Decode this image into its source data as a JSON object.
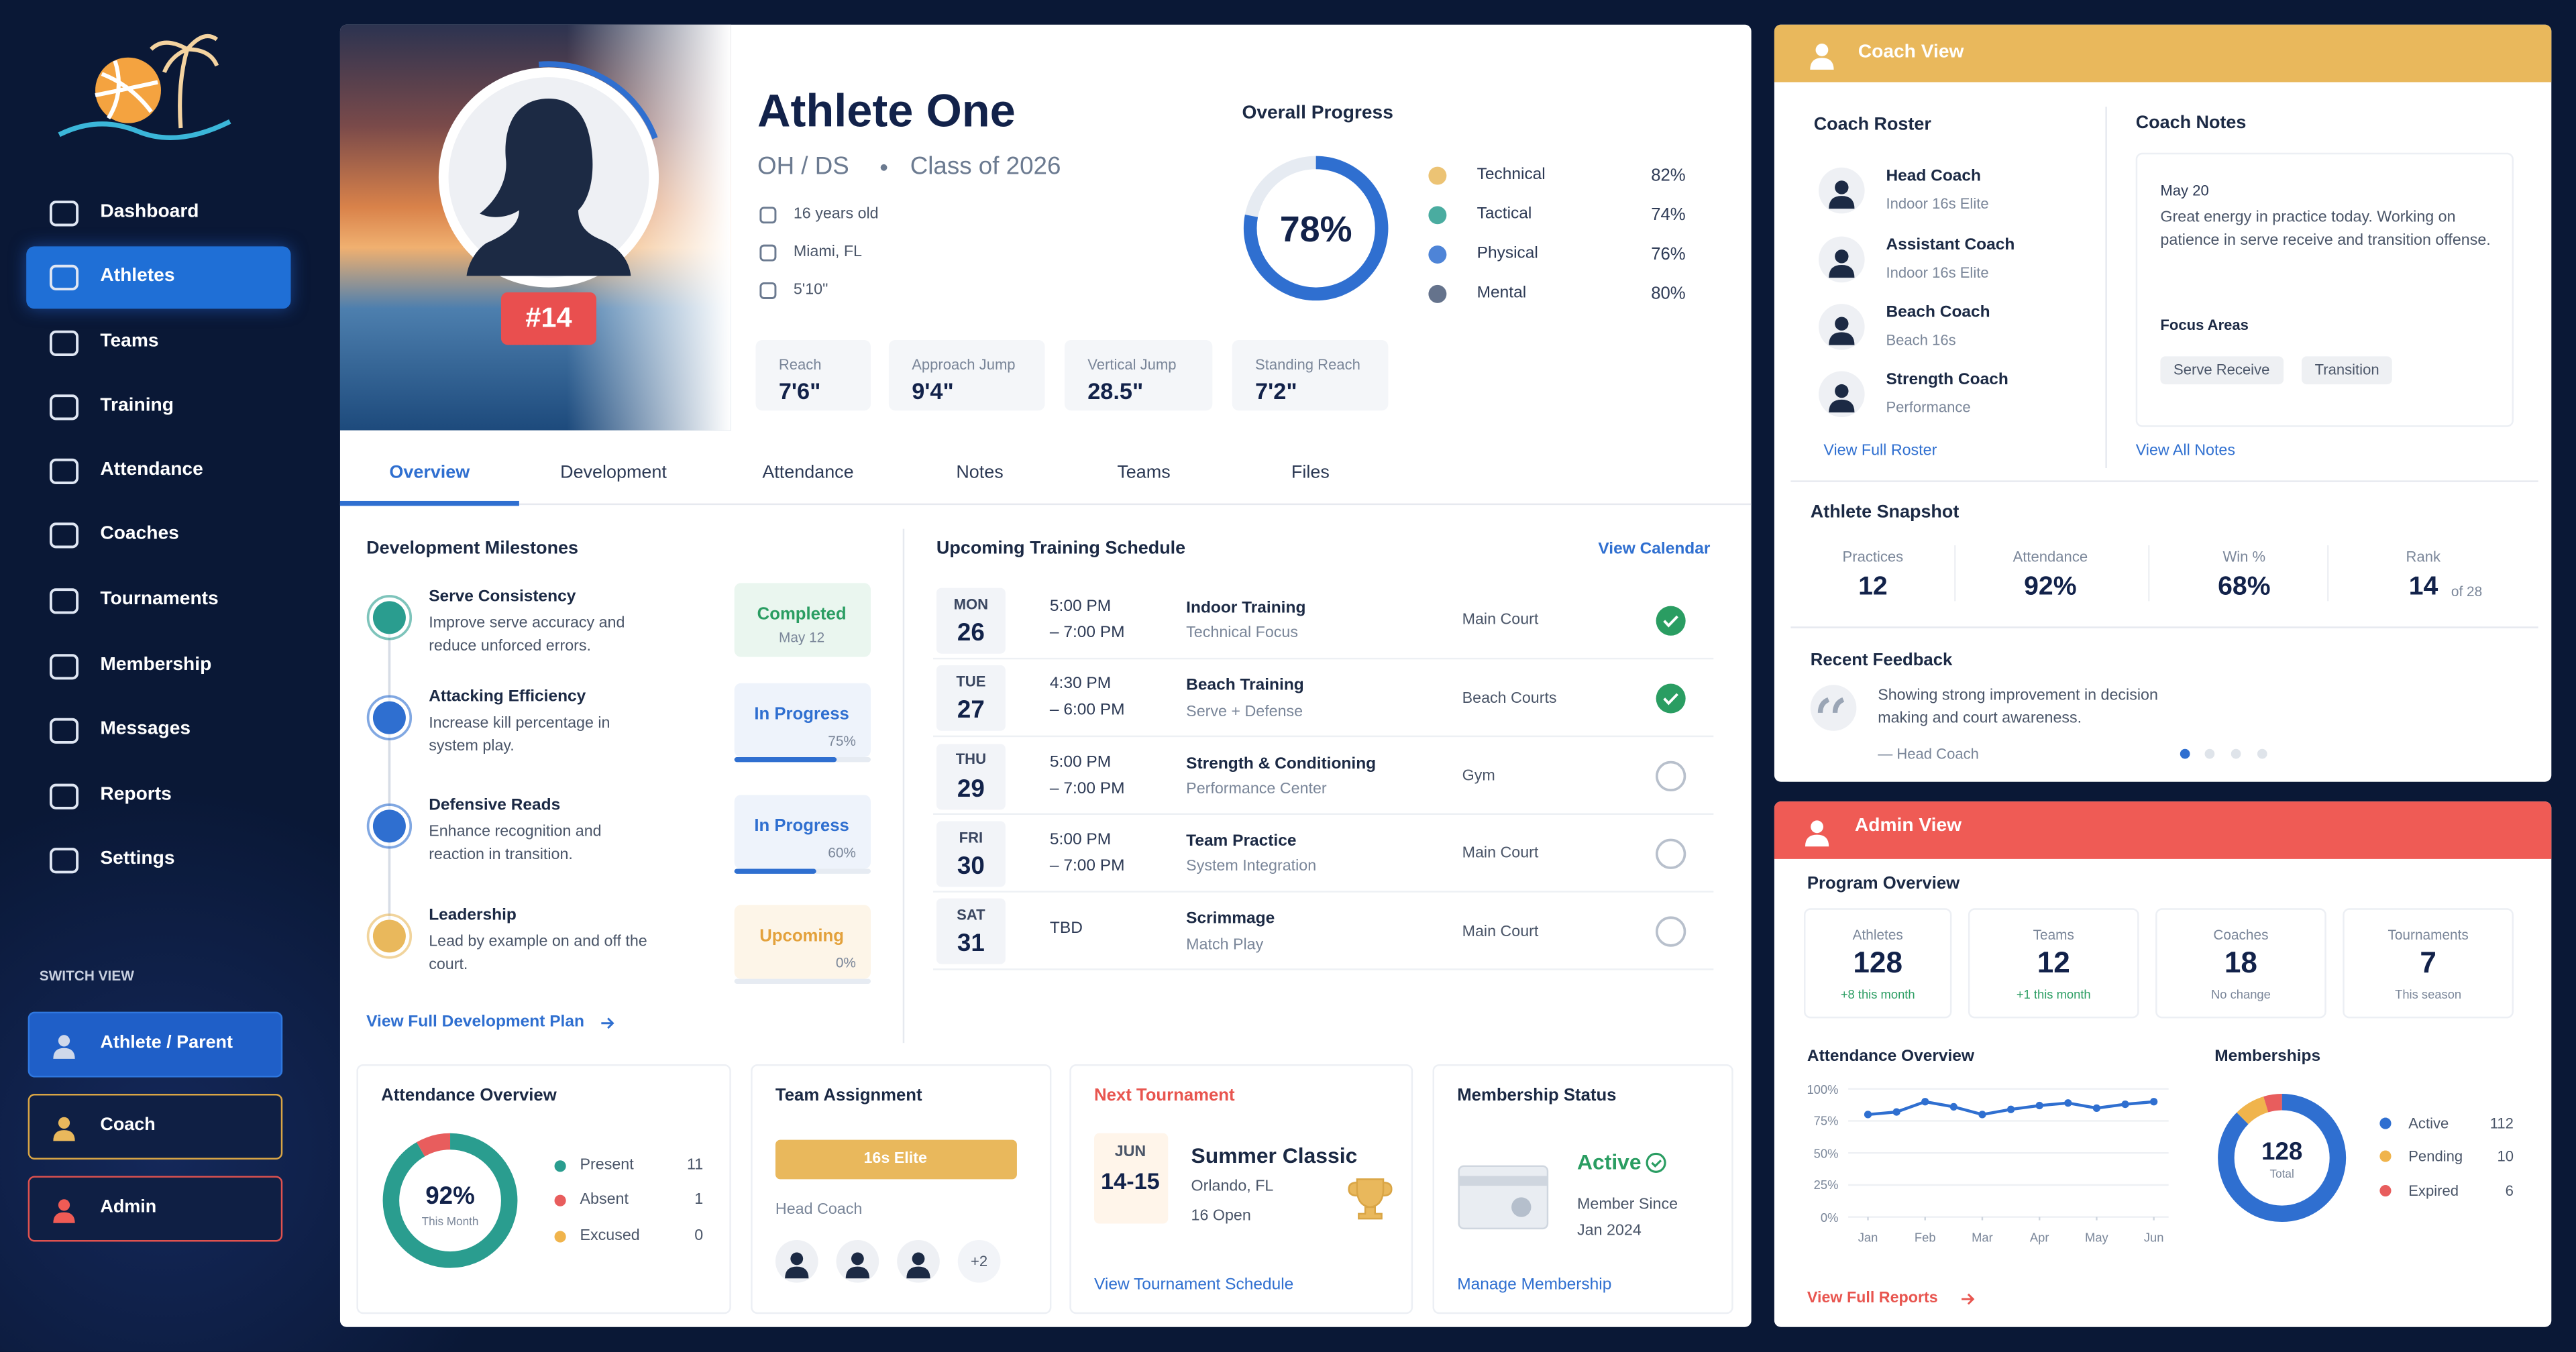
{
  "sidebar": {
    "nav": [
      "Dashboard",
      "Athletes",
      "Teams",
      "Training",
      "Attendance",
      "Coaches",
      "Tournaments",
      "Membership",
      "Messages",
      "Reports",
      "Settings"
    ],
    "switch_view": "SWITCH VIEW",
    "views": [
      "Athlete / Parent",
      "Coach",
      "Admin"
    ]
  },
  "profile": {
    "number": "#14",
    "name": "Athlete One",
    "positions": "OH / DS",
    "class": "Class of 2026",
    "details": [
      "16 years old",
      "Miami, FL",
      "5'10\""
    ],
    "stats": [
      {
        "label": "Reach",
        "value": "7'6\""
      },
      {
        "label": "Approach Jump",
        "value": "9'4\""
      },
      {
        "label": "Vertical Jump",
        "value": "28.5\""
      },
      {
        "label": "Standing Reach",
        "value": "7'2\""
      }
    ],
    "overall_progress": {
      "title": "Overall Progress",
      "value": 78,
      "label": "78%"
    },
    "skills": [
      {
        "name": "Technical",
        "value": "82%"
      },
      {
        "name": "Tactical",
        "value": "74%"
      },
      {
        "name": "Physical",
        "value": "76%"
      },
      {
        "name": "Mental",
        "value": "80%"
      }
    ]
  },
  "tabs": [
    "Overview",
    "Development",
    "Attendance",
    "Notes",
    "Teams",
    "Files"
  ],
  "milestones": {
    "title": "Development Milestones",
    "items": [
      {
        "title": "Serve Consistency",
        "description": "Improve serve accuracy and reduce unforced errors.",
        "status": "Completed",
        "note": "May 12"
      },
      {
        "title": "Attacking Efficiency",
        "description": "Increase kill percentage in system play.",
        "status": "In Progress",
        "progress": 75,
        "progress_label": "75%"
      },
      {
        "title": "Defensive Reads",
        "description": "Enhance recognition and reaction in transition.",
        "status": "In Progress",
        "progress": 60,
        "progress_label": "60%"
      },
      {
        "title": "Leadership",
        "description": "Lead by example on and off the court.",
        "status": "Upcoming",
        "progress": 0,
        "progress_label": "0%"
      }
    ],
    "link": "View Full Development Plan"
  },
  "schedule": {
    "title": "Upcoming Training Schedule",
    "link": "View Calendar",
    "rows": [
      {
        "day": "MON",
        "date": "26",
        "start": "5:00 PM",
        "end": "– 7:00 PM",
        "title": "Indoor Training",
        "subtitle": "Technical Focus",
        "location": "Main Court",
        "done": true
      },
      {
        "day": "TUE",
        "date": "27",
        "start": "4:30 PM",
        "end": "– 6:00 PM",
        "title": "Beach Training",
        "subtitle": "Serve + Defense",
        "location": "Beach Courts",
        "done": true
      },
      {
        "day": "THU",
        "date": "29",
        "start": "5:00 PM",
        "end": "– 7:00 PM",
        "title": "Strength & Conditioning",
        "subtitle": "Performance Center",
        "location": "Gym",
        "done": false
      },
      {
        "day": "FRI",
        "date": "30",
        "start": "5:00 PM",
        "end": "– 7:00 PM",
        "title": "Team Practice",
        "subtitle": "System Integration",
        "location": "Main Court",
        "done": false
      },
      {
        "day": "SAT",
        "date": "31",
        "start": "TBD",
        "title": "Scrimmage",
        "subtitle": "Match Play",
        "location": "Main Court",
        "done": false
      }
    ]
  },
  "attendance": {
    "title": "Attendance Overview",
    "percent": 92,
    "percent_label": "92%",
    "caption": "This Month",
    "items": [
      {
        "name": "Present",
        "value": 11,
        "color": "#2a9d8f"
      },
      {
        "name": "Absent",
        "value": 1,
        "color": "#e85d5d"
      },
      {
        "name": "Excused",
        "value": 0,
        "color": "#f0b44c"
      }
    ]
  },
  "team_assignment": {
    "title": "Team Assignment",
    "team": "16s Elite",
    "role": "Head Coach",
    "more": "+2"
  },
  "tournament": {
    "title": "Next Tournament",
    "month": "JUN",
    "dates": "14-15",
    "name": "Summer Classic",
    "location": "Orlando, FL",
    "division": "16 Open",
    "link": "View Tournament Schedule"
  },
  "membership": {
    "title": "Membership Status",
    "status": "Active",
    "since_label": "Member Since",
    "since": "Jan 2024",
    "link": "Manage Membership"
  },
  "coach_view": {
    "title": "Coach View",
    "roster_title": "Coach Roster",
    "roster": [
      {
        "role": "Head Coach",
        "team": "Indoor 16s Elite"
      },
      {
        "role": "Assistant Coach",
        "team": "Indoor 16s Elite"
      },
      {
        "role": "Beach Coach",
        "team": "Beach 16s"
      },
      {
        "role": "Strength Coach",
        "team": "Performance"
      }
    ],
    "roster_link": "View Full Roster",
    "notes_title": "Coach Notes",
    "note": {
      "date": "May 20",
      "text": "Great energy in practice today. Working on patience in serve receive and transition offense.",
      "focus_title": "Focus Areas",
      "focus": [
        "Serve Receive",
        "Transition"
      ]
    },
    "notes_link": "View All Notes",
    "snapshot_title": "Athlete Snapshot",
    "snapshot": [
      {
        "label": "Practices",
        "value": "12"
      },
      {
        "label": "Attendance",
        "value": "92%"
      },
      {
        "label": "Win %",
        "value": "68%"
      },
      {
        "label": "Rank",
        "value": "14",
        "suffix": "of 28"
      }
    ],
    "feedback_title": "Recent Feedback",
    "feedback": "Showing strong improvement in decision making and court awareness.",
    "feedback_author": "— Head Coach"
  },
  "admin_view": {
    "title": "Admin View",
    "overview_title": "Program Overview",
    "overview": [
      {
        "label": "Athletes",
        "value": "128",
        "note": "+8 this month"
      },
      {
        "label": "Teams",
        "value": "12",
        "note": "+1 this month"
      },
      {
        "label": "Coaches",
        "value": "18",
        "note": "No change"
      },
      {
        "label": "Tournaments",
        "value": "7",
        "note": "This season"
      }
    ],
    "chart": {
      "type": "line",
      "title": "Attendance Overview",
      "x": [
        0,
        0.5,
        1,
        1.5,
        2,
        2.5,
        3,
        3.5,
        4,
        4.5,
        5
      ],
      "values": [
        80,
        82,
        90,
        86,
        80,
        84,
        87,
        89,
        85,
        88,
        90
      ],
      "color": "#2f6fd0",
      "xlim": [
        0,
        5
      ],
      "xticks": [
        {
          "value": 0,
          "label": "Jan"
        },
        {
          "value": 1,
          "label": "Feb"
        },
        {
          "value": 2,
          "label": "Mar"
        },
        {
          "value": 3,
          "label": "Apr"
        },
        {
          "value": 4,
          "label": "May"
        },
        {
          "value": 5,
          "label": "Jun"
        }
      ],
      "ylim": [
        0,
        100
      ],
      "yticks": [
        {
          "value": 100,
          "label": "100%"
        },
        {
          "value": 75,
          "label": "75%"
        },
        {
          "value": 50,
          "label": "50%"
        },
        {
          "value": 25,
          "label": "25%"
        },
        {
          "value": 0,
          "label": "0%"
        }
      ],
      "grid": true
    },
    "memberships": {
      "title": "Memberships",
      "total": 128,
      "total_label": "Total",
      "items": [
        {
          "name": "Active",
          "value": 112,
          "color": "#2f6fd0"
        },
        {
          "name": "Pending",
          "value": 10,
          "color": "#f0b44c"
        },
        {
          "name": "Expired",
          "value": 6,
          "color": "#e85d5d"
        }
      ]
    },
    "link": "View Full Reports"
  }
}
